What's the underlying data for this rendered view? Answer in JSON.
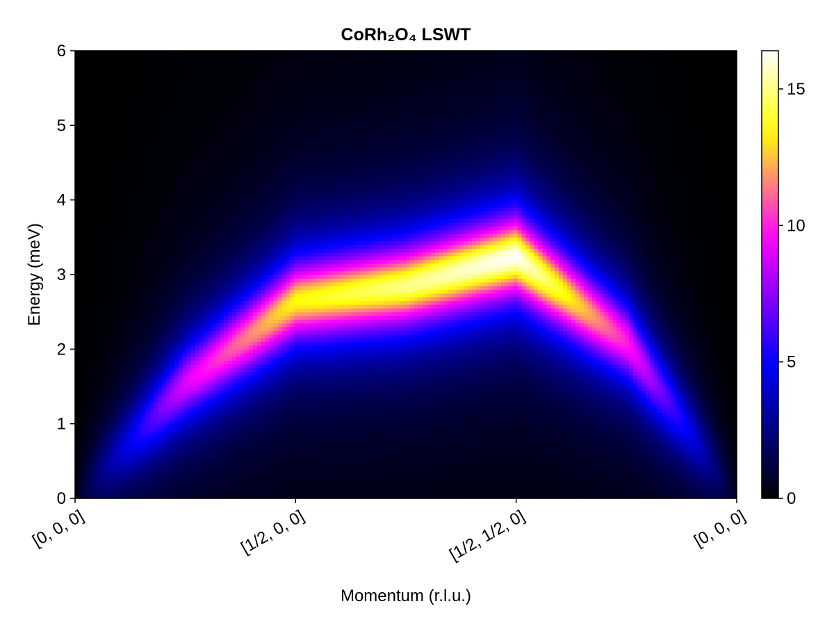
{
  "chart_data": {
    "type": "heatmap",
    "title": "CoRh₂O₄ LSWT",
    "xlabel": "Momentum (r.l.u.)",
    "ylabel": "Energy (meV)",
    "x_ticks": [
      "[0, 0, 0]",
      "[1/2, 0, 0]",
      "[1/2, 1/2, 0]",
      "[0, 0, 0]"
    ],
    "y_ticks": [
      "0",
      "1",
      "2",
      "3",
      "4",
      "5",
      "6"
    ],
    "ylim": [
      0,
      6
    ],
    "path_segments": [
      "[0, 0, 0] → [1/2, 0, 0]",
      "[1/2, 0, 0] → [1/2, 1/2, 0]",
      "[1/2, 1/2, 0] → [0, 0, 0]"
    ],
    "band_energy": {
      "x_index": [
        0,
        0.5,
        1,
        1.5,
        2,
        2.5,
        3
      ],
      "energy_meV": [
        0,
        1.55,
        2.65,
        2.85,
        3.25,
        2.1,
        0
      ]
    },
    "peak_intensity": {
      "x_index": [
        0,
        0.5,
        1,
        1.5,
        2,
        2.5,
        3
      ],
      "intensity": [
        0.5,
        9,
        13.5,
        15,
        16.4,
        10,
        0.5
      ]
    },
    "colorbar": {
      "colormap": "gnuplot2",
      "range": [
        0,
        16.4
      ],
      "ticks": [
        "0",
        "5",
        "10",
        "15"
      ],
      "tick_values": [
        0,
        5,
        10,
        15
      ]
    },
    "colors": [
      "#000000",
      "#0000ff",
      "#ff00ff",
      "#ffff00",
      "#ffffff"
    ]
  }
}
